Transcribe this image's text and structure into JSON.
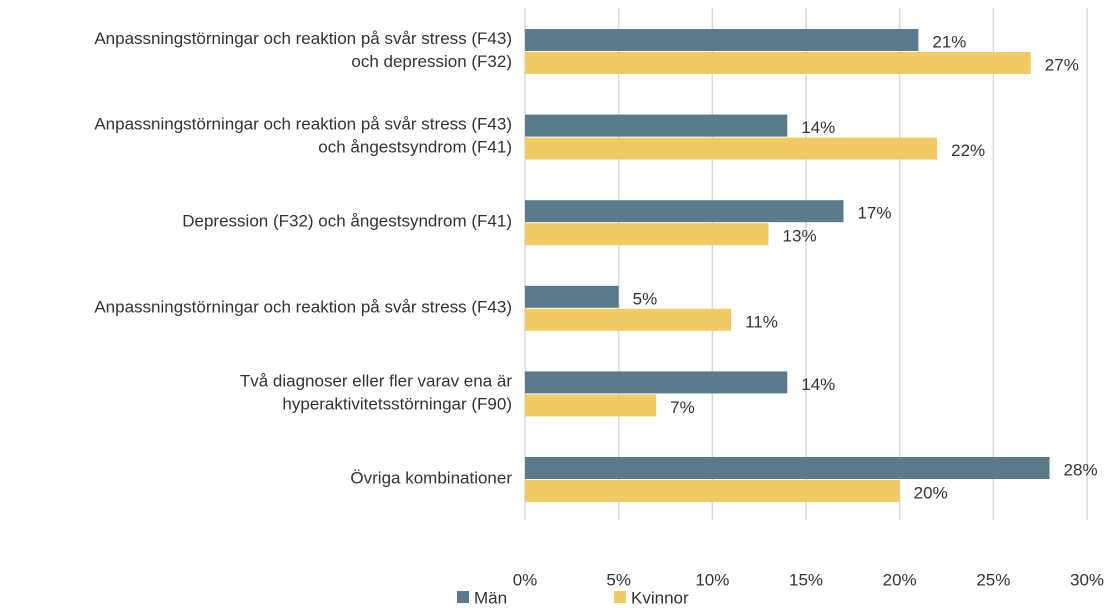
{
  "chart_data": {
    "type": "bar",
    "orientation": "horizontal",
    "categories": [
      "Anpassningstörningar och reaktion på svår stress (F43)\noch depression (F32)",
      "Anpassningstörningar och reaktion på svår stress (F43)\noch ångestsyndrom (F41)",
      "Depression (F32) och ångestsyndrom (F41)",
      "Anpassningstörningar och reaktion på svår stress (F43)",
      "Två diagnoser eller fler varav ena är\nhyperaktivitetsstörningar (F90)",
      "Övriga kombinationer"
    ],
    "series": [
      {
        "name": "Män",
        "color": "#5b7a8c",
        "values": [
          21,
          14,
          17,
          5,
          14,
          28
        ],
        "value_labels": [
          "21%",
          "14%",
          "17%",
          "5%",
          "14%",
          "28%"
        ]
      },
      {
        "name": "Kvinnor",
        "color": "#f0cb65",
        "values": [
          27,
          22,
          13,
          11,
          7,
          20
        ],
        "value_labels": [
          "27%",
          "22%",
          "13%",
          "11%",
          "7%",
          "20%"
        ]
      }
    ],
    "xlim": [
      0,
      30
    ],
    "xticks": [
      {
        "value": 0,
        "label": "0%"
      },
      {
        "value": 5,
        "label": "5%"
      },
      {
        "value": 10,
        "label": "10%"
      },
      {
        "value": 15,
        "label": "15%"
      },
      {
        "value": 20,
        "label": "20%"
      },
      {
        "value": 25,
        "label": "25%"
      },
      {
        "value": 30,
        "label": "30%"
      }
    ],
    "grid": true,
    "legend": "bottom"
  }
}
